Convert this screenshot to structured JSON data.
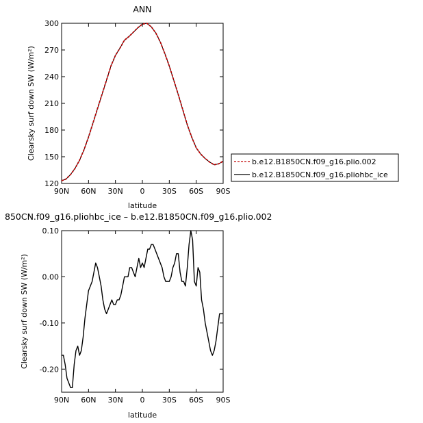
{
  "chart_data": [
    {
      "type": "line",
      "title": "ANN",
      "xlabel": "latitude",
      "ylabel": "Clearsky surf down SW (W/m²)",
      "x_tick_labels": [
        "90N",
        "60N",
        "30N",
        "0",
        "30S",
        "60S",
        "90S"
      ],
      "y_ticks": [
        120,
        150,
        180,
        210,
        240,
        270,
        300
      ],
      "xlim": [
        90,
        -90
      ],
      "ylim": [
        120,
        300
      ],
      "legend_position": "right",
      "colors": {
        "control": "#c00000",
        "ice": "#000000"
      },
      "series": [
        {
          "name": "b.e12.B1850CN.f09_g16.plio.002",
          "key": "control",
          "line_style": "dashed",
          "x": [
            90,
            85,
            80,
            75,
            70,
            65,
            60,
            55,
            50,
            45,
            40,
            35,
            30,
            25,
            20,
            15,
            10,
            5,
            0,
            -5,
            -10,
            -15,
            -20,
            -25,
            -30,
            -35,
            -40,
            -45,
            -50,
            -55,
            -60,
            -65,
            -70,
            -75,
            -80,
            -85,
            -90
          ],
          "y": [
            123,
            125,
            130,
            137,
            146,
            158,
            172,
            188,
            204,
            220,
            236,
            252,
            264,
            272,
            281,
            285,
            290,
            295,
            299,
            300,
            296,
            289,
            279,
            266,
            252,
            236,
            220,
            203,
            186,
            172,
            160,
            153,
            148,
            144,
            141,
            142,
            145
          ]
        },
        {
          "name": "b.e12.B1850CN.f09_g16.pliohbc_ice",
          "key": "ice",
          "line_style": "solid",
          "x": [
            90,
            85,
            80,
            75,
            70,
            65,
            60,
            55,
            50,
            45,
            40,
            35,
            30,
            25,
            20,
            15,
            10,
            5,
            0,
            -5,
            -10,
            -15,
            -20,
            -25,
            -30,
            -35,
            -40,
            -45,
            -50,
            -55,
            -60,
            -65,
            -70,
            -75,
            -80,
            -85,
            -90
          ],
          "y": [
            123,
            125,
            130,
            137,
            146,
            158,
            172,
            188,
            204,
            220,
            236,
            252,
            264,
            272,
            281,
            285,
            290,
            295,
            299,
            300,
            296,
            289,
            279,
            266,
            252,
            236,
            220,
            203,
            186,
            172,
            160,
            153,
            148,
            144,
            141,
            142,
            145
          ]
        }
      ]
    },
    {
      "type": "line",
      "title": "850CN.f09_g16.pliohbc_ice – b.e12.B1850CN.f09_g16.plio.002",
      "xlabel": "latitude",
      "ylabel": "Clearsky surf down SW (W/m²)",
      "x_tick_labels": [
        "90N",
        "60N",
        "30N",
        "0",
        "30S",
        "60S",
        "90S"
      ],
      "y_ticks": [
        -0.2,
        -0.1,
        0.0,
        0.1
      ],
      "y_tick_labels": [
        "-0.20",
        "-0.10",
        "0.00",
        "0.10"
      ],
      "xlim": [
        90,
        -90
      ],
      "ylim": [
        -0.25,
        0.1
      ],
      "series": [
        {
          "key": "diff",
          "color": "#000000",
          "x": [
            90,
            88,
            86,
            84,
            82,
            80,
            78,
            76,
            74,
            72,
            70,
            68,
            66,
            64,
            62,
            60,
            58,
            56,
            54,
            52,
            50,
            48,
            46,
            44,
            42,
            40,
            38,
            36,
            34,
            32,
            30,
            28,
            26,
            24,
            22,
            20,
            18,
            16,
            14,
            12,
            10,
            8,
            6,
            4,
            2,
            0,
            -2,
            -4,
            -6,
            -8,
            -10,
            -12,
            -14,
            -16,
            -18,
            -20,
            -22,
            -24,
            -26,
            -28,
            -30,
            -32,
            -34,
            -36,
            -38,
            -40,
            -42,
            -44,
            -46,
            -48,
            -50,
            -52,
            -54,
            -56,
            -58,
            -60,
            -62,
            -64,
            -66,
            -68,
            -70,
            -72,
            -74,
            -76,
            -78,
            -80,
            -82,
            -84,
            -86,
            -88,
            -90
          ],
          "y": [
            -0.17,
            -0.17,
            -0.19,
            -0.22,
            -0.23,
            -0.24,
            -0.24,
            -0.19,
            -0.16,
            -0.15,
            -0.17,
            -0.16,
            -0.13,
            -0.09,
            -0.06,
            -0.03,
            -0.02,
            -0.01,
            0.01,
            0.03,
            0.02,
            0.0,
            -0.02,
            -0.05,
            -0.07,
            -0.08,
            -0.07,
            -0.06,
            -0.05,
            -0.06,
            -0.06,
            -0.05,
            -0.05,
            -0.04,
            -0.02,
            0.0,
            0.0,
            0.0,
            0.02,
            0.02,
            0.01,
            0.0,
            0.02,
            0.04,
            0.02,
            0.03,
            0.02,
            0.04,
            0.06,
            0.06,
            0.07,
            0.07,
            0.06,
            0.05,
            0.04,
            0.03,
            0.02,
            0.0,
            -0.01,
            -0.01,
            -0.01,
            0.0,
            0.02,
            0.03,
            0.05,
            0.05,
            0.01,
            -0.01,
            -0.01,
            -0.02,
            0.02,
            0.07,
            0.1,
            0.08,
            -0.01,
            -0.02,
            0.02,
            0.01,
            -0.05,
            -0.07,
            -0.1,
            -0.12,
            -0.14,
            -0.16,
            -0.17,
            -0.16,
            -0.14,
            -0.11,
            -0.08,
            -0.08,
            -0.08
          ]
        }
      ]
    }
  ]
}
